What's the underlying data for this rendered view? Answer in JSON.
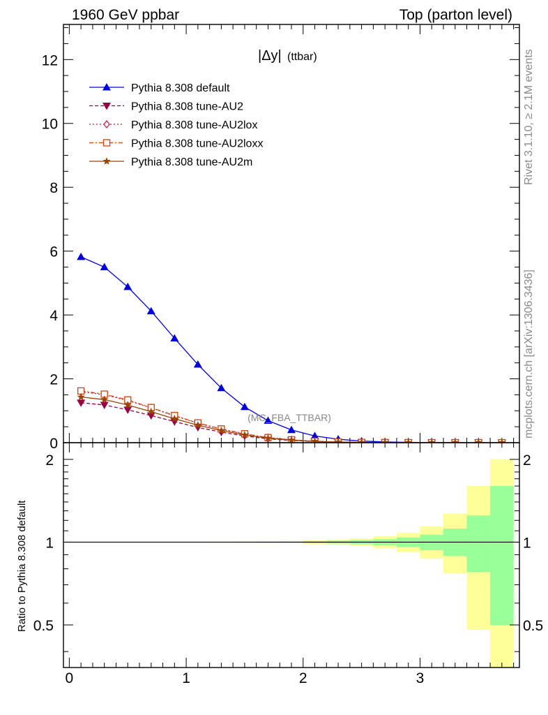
{
  "header": {
    "left_title": "1960 GeV ppbar",
    "right_title": "Top (parton level)"
  },
  "side_labels": {
    "rivet": "Rivet 3.1.10, ≥ 2.1M events",
    "mcplots": "mcplots.cern.ch [arXiv:1306.3436]"
  },
  "watermark": "(MC_FBA_TTBAR)",
  "colors": {
    "default": "#0000dd",
    "au2": "#990044",
    "au2lox": "#bb2244",
    "au2loxx": "#cc4411",
    "au2m": "#994400",
    "band_yellow": "#ffff99",
    "band_green": "#99ff99"
  },
  "chart_data": [
    {
      "type": "line",
      "title_main": "|Δy|",
      "title_sub": "(ttbar)",
      "xlabel": "",
      "ylabel": "",
      "xlim": [
        -0.05,
        3.85
      ],
      "ylim": [
        0,
        13.1
      ],
      "yticks": [
        0,
        2,
        4,
        6,
        8,
        10,
        12
      ],
      "x": [
        0.1,
        0.3,
        0.5,
        0.7,
        0.9,
        1.1,
        1.3,
        1.5,
        1.7,
        1.9,
        2.1,
        2.3,
        2.5,
        2.7,
        2.9,
        3.1,
        3.3,
        3.5,
        3.7
      ],
      "series": [
        {
          "key": "default",
          "name": "Pythia 8.308 default",
          "marker": "triangle-up",
          "dash": "",
          "values": [
            5.82,
            5.5,
            4.88,
            4.12,
            3.27,
            2.45,
            1.71,
            1.12,
            0.69,
            0.4,
            0.21,
            0.11,
            0.05,
            0.025,
            0.01,
            0.005,
            0.002,
            0.001,
            0.0005
          ]
        },
        {
          "key": "au2",
          "name": "Pythia 8.308 tune-AU2",
          "marker": "triangle-down",
          "dash": "5,3",
          "values": [
            1.25,
            1.18,
            1.03,
            0.85,
            0.66,
            0.48,
            0.33,
            0.21,
            0.12,
            0.07,
            0.035,
            0.017,
            0.008,
            0.004,
            0.002,
            0.001,
            0.0005,
            0.0003,
            0.0001
          ]
        },
        {
          "key": "au2lox",
          "name": "Pythia 8.308 tune-AU2lox",
          "marker": "diamond",
          "dash": "2,3",
          "values": [
            1.6,
            1.5,
            1.32,
            1.09,
            0.84,
            0.61,
            0.42,
            0.27,
            0.16,
            0.09,
            0.045,
            0.022,
            0.01,
            0.005,
            0.002,
            0.001,
            0.0005,
            0.0003,
            0.0001
          ]
        },
        {
          "key": "au2loxx",
          "name": "Pythia 8.308 tune-AU2loxx",
          "marker": "square",
          "dash": "6,3,2,3",
          "values": [
            1.62,
            1.52,
            1.34,
            1.1,
            0.85,
            0.62,
            0.43,
            0.28,
            0.16,
            0.09,
            0.046,
            0.022,
            0.01,
            0.005,
            0.002,
            0.001,
            0.0005,
            0.0003,
            0.0001
          ]
        },
        {
          "key": "au2m",
          "name": "Pythia 8.308 tune-AU2m",
          "marker": "star",
          "dash": "",
          "values": [
            1.43,
            1.35,
            1.18,
            0.97,
            0.75,
            0.55,
            0.38,
            0.24,
            0.14,
            0.08,
            0.04,
            0.02,
            0.009,
            0.004,
            0.002,
            0.001,
            0.0005,
            0.0002,
            0.0001
          ]
        }
      ],
      "legend_position": "top-left"
    },
    {
      "type": "area",
      "ylabel": "Ratio to Pythia 8.308 default",
      "xlim": [
        -0.05,
        3.85
      ],
      "ylim": [
        0.35,
        2.3
      ],
      "yticks": [
        0.5,
        1,
        2
      ],
      "ytick_labels": [
        "0.5",
        "1",
        "2"
      ],
      "xticks": [
        0,
        1,
        2,
        3
      ],
      "bin_edges": [
        0,
        0.2,
        0.4,
        0.6,
        0.8,
        1.0,
        1.2,
        1.4,
        1.6,
        1.8,
        2.0,
        2.2,
        2.4,
        2.6,
        2.8,
        3.0,
        3.2,
        3.4,
        3.6,
        3.8
      ],
      "band_yellow_lo": [
        0.998,
        0.998,
        0.998,
        0.998,
        0.997,
        0.997,
        0.996,
        0.995,
        0.993,
        0.99,
        0.985,
        0.978,
        0.968,
        0.95,
        0.92,
        0.87,
        0.77,
        0.48,
        0.33
      ],
      "band_yellow_hi": [
        1.002,
        1.002,
        1.002,
        1.002,
        1.003,
        1.003,
        1.004,
        1.005,
        1.007,
        1.01,
        1.015,
        1.022,
        1.032,
        1.05,
        1.08,
        1.14,
        1.27,
        1.6,
        2.0
      ],
      "band_green_lo": [
        0.999,
        0.999,
        0.999,
        0.999,
        0.998,
        0.998,
        0.998,
        0.997,
        0.996,
        0.995,
        0.992,
        0.988,
        0.983,
        0.975,
        0.96,
        0.935,
        0.89,
        0.78,
        0.5
      ],
      "band_green_hi": [
        1.001,
        1.001,
        1.001,
        1.001,
        1.002,
        1.002,
        1.002,
        1.003,
        1.004,
        1.005,
        1.008,
        1.012,
        1.017,
        1.025,
        1.04,
        1.065,
        1.12,
        1.25,
        1.6
      ],
      "reference": 1.0
    }
  ]
}
